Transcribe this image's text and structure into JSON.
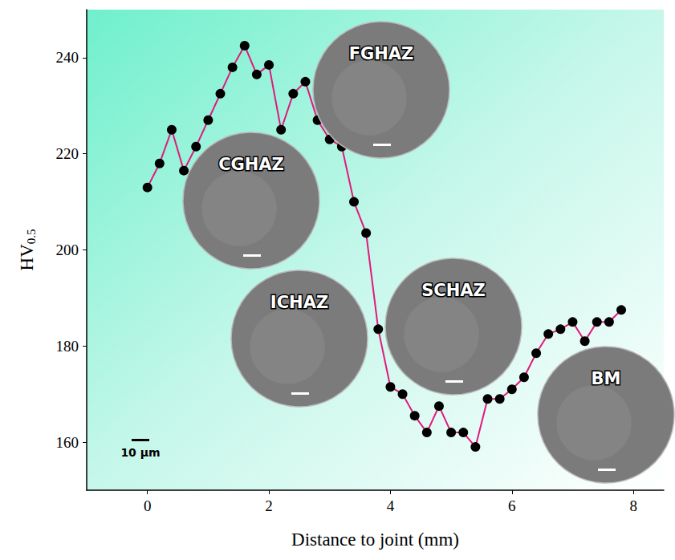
{
  "chart_data": {
    "type": "line",
    "xlabel": "Distance to joint (mm)",
    "ylabel": "HV0.5",
    "x": [
      0,
      0.2,
      0.4,
      0.6,
      0.8,
      1.0,
      1.2,
      1.4,
      1.6,
      1.8,
      2.0,
      2.2,
      2.4,
      2.6,
      2.8,
      3.0,
      3.2,
      3.4,
      3.6,
      3.8,
      4.0,
      4.2,
      4.4,
      4.6,
      4.8,
      5.0,
      5.2,
      5.4,
      5.6,
      5.8,
      6.0,
      6.2,
      6.4,
      6.6,
      6.8,
      7.0,
      7.2,
      7.4,
      7.6,
      7.8
    ],
    "values": [
      213,
      218,
      225,
      216.5,
      221.5,
      227,
      232.5,
      238,
      242.5,
      236.5,
      238.5,
      225,
      232.5,
      235,
      227,
      223,
      221.5,
      210,
      203.5,
      183.5,
      171.5,
      170,
      165.5,
      162,
      167.5,
      162,
      162,
      159,
      169,
      169,
      171,
      173.5,
      178.5,
      182.5,
      183.5,
      185,
      181,
      185,
      185,
      187.5
    ],
    "color": "#e0197d",
    "marker": "circle",
    "xlim": [
      -1,
      8.5
    ],
    "xticks": [
      0,
      2,
      4,
      6,
      8
    ],
    "ylim": [
      150,
      250
    ],
    "yticks": [
      160,
      180,
      200,
      220,
      240
    ],
    "grid": false,
    "annotations": [
      "FGHAZ",
      "CGHAZ",
      "ICHAZ",
      "SCHAZ",
      "BM"
    ],
    "scale_bar": "10 μm"
  }
}
